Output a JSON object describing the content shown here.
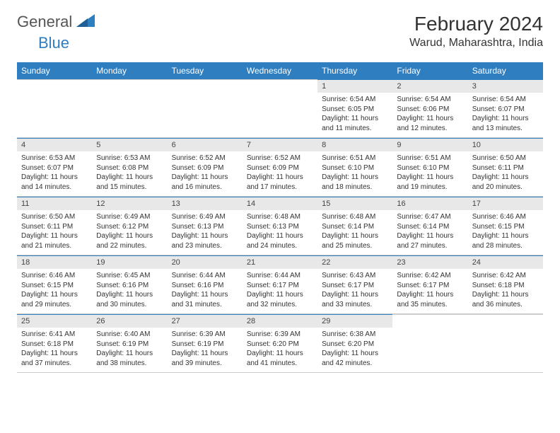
{
  "brand": {
    "general": "General",
    "blue": "Blue"
  },
  "title": "February 2024",
  "location": "Warud, Maharashtra, India",
  "colors": {
    "header_bg": "#2f7ec0",
    "header_fg": "#ffffff",
    "daynum_bg": "#e8e8e8",
    "border": "#cccccc",
    "logo_gray": "#555555",
    "logo_blue": "#2f7ec0",
    "page_bg": "#ffffff",
    "text": "#333333"
  },
  "weekdays": [
    "Sunday",
    "Monday",
    "Tuesday",
    "Wednesday",
    "Thursday",
    "Friday",
    "Saturday"
  ],
  "weeks": [
    [
      null,
      null,
      null,
      null,
      {
        "n": "1",
        "sr": "6:54 AM",
        "ss": "6:05 PM",
        "dl": "11 hours and 11 minutes."
      },
      {
        "n": "2",
        "sr": "6:54 AM",
        "ss": "6:06 PM",
        "dl": "11 hours and 12 minutes."
      },
      {
        "n": "3",
        "sr": "6:54 AM",
        "ss": "6:07 PM",
        "dl": "11 hours and 13 minutes."
      }
    ],
    [
      {
        "n": "4",
        "sr": "6:53 AM",
        "ss": "6:07 PM",
        "dl": "11 hours and 14 minutes."
      },
      {
        "n": "5",
        "sr": "6:53 AM",
        "ss": "6:08 PM",
        "dl": "11 hours and 15 minutes."
      },
      {
        "n": "6",
        "sr": "6:52 AM",
        "ss": "6:09 PM",
        "dl": "11 hours and 16 minutes."
      },
      {
        "n": "7",
        "sr": "6:52 AM",
        "ss": "6:09 PM",
        "dl": "11 hours and 17 minutes."
      },
      {
        "n": "8",
        "sr": "6:51 AM",
        "ss": "6:10 PM",
        "dl": "11 hours and 18 minutes."
      },
      {
        "n": "9",
        "sr": "6:51 AM",
        "ss": "6:10 PM",
        "dl": "11 hours and 19 minutes."
      },
      {
        "n": "10",
        "sr": "6:50 AM",
        "ss": "6:11 PM",
        "dl": "11 hours and 20 minutes."
      }
    ],
    [
      {
        "n": "11",
        "sr": "6:50 AM",
        "ss": "6:11 PM",
        "dl": "11 hours and 21 minutes."
      },
      {
        "n": "12",
        "sr": "6:49 AM",
        "ss": "6:12 PM",
        "dl": "11 hours and 22 minutes."
      },
      {
        "n": "13",
        "sr": "6:49 AM",
        "ss": "6:13 PM",
        "dl": "11 hours and 23 minutes."
      },
      {
        "n": "14",
        "sr": "6:48 AM",
        "ss": "6:13 PM",
        "dl": "11 hours and 24 minutes."
      },
      {
        "n": "15",
        "sr": "6:48 AM",
        "ss": "6:14 PM",
        "dl": "11 hours and 25 minutes."
      },
      {
        "n": "16",
        "sr": "6:47 AM",
        "ss": "6:14 PM",
        "dl": "11 hours and 27 minutes."
      },
      {
        "n": "17",
        "sr": "6:46 AM",
        "ss": "6:15 PM",
        "dl": "11 hours and 28 minutes."
      }
    ],
    [
      {
        "n": "18",
        "sr": "6:46 AM",
        "ss": "6:15 PM",
        "dl": "11 hours and 29 minutes."
      },
      {
        "n": "19",
        "sr": "6:45 AM",
        "ss": "6:16 PM",
        "dl": "11 hours and 30 minutes."
      },
      {
        "n": "20",
        "sr": "6:44 AM",
        "ss": "6:16 PM",
        "dl": "11 hours and 31 minutes."
      },
      {
        "n": "21",
        "sr": "6:44 AM",
        "ss": "6:17 PM",
        "dl": "11 hours and 32 minutes."
      },
      {
        "n": "22",
        "sr": "6:43 AM",
        "ss": "6:17 PM",
        "dl": "11 hours and 33 minutes."
      },
      {
        "n": "23",
        "sr": "6:42 AM",
        "ss": "6:17 PM",
        "dl": "11 hours and 35 minutes."
      },
      {
        "n": "24",
        "sr": "6:42 AM",
        "ss": "6:18 PM",
        "dl": "11 hours and 36 minutes."
      }
    ],
    [
      {
        "n": "25",
        "sr": "6:41 AM",
        "ss": "6:18 PM",
        "dl": "11 hours and 37 minutes."
      },
      {
        "n": "26",
        "sr": "6:40 AM",
        "ss": "6:19 PM",
        "dl": "11 hours and 38 minutes."
      },
      {
        "n": "27",
        "sr": "6:39 AM",
        "ss": "6:19 PM",
        "dl": "11 hours and 39 minutes."
      },
      {
        "n": "28",
        "sr": "6:39 AM",
        "ss": "6:20 PM",
        "dl": "11 hours and 41 minutes."
      },
      {
        "n": "29",
        "sr": "6:38 AM",
        "ss": "6:20 PM",
        "dl": "11 hours and 42 minutes."
      },
      null,
      null
    ]
  ],
  "labels": {
    "sunrise": "Sunrise: ",
    "sunset": "Sunset: ",
    "daylight": "Daylight: "
  }
}
